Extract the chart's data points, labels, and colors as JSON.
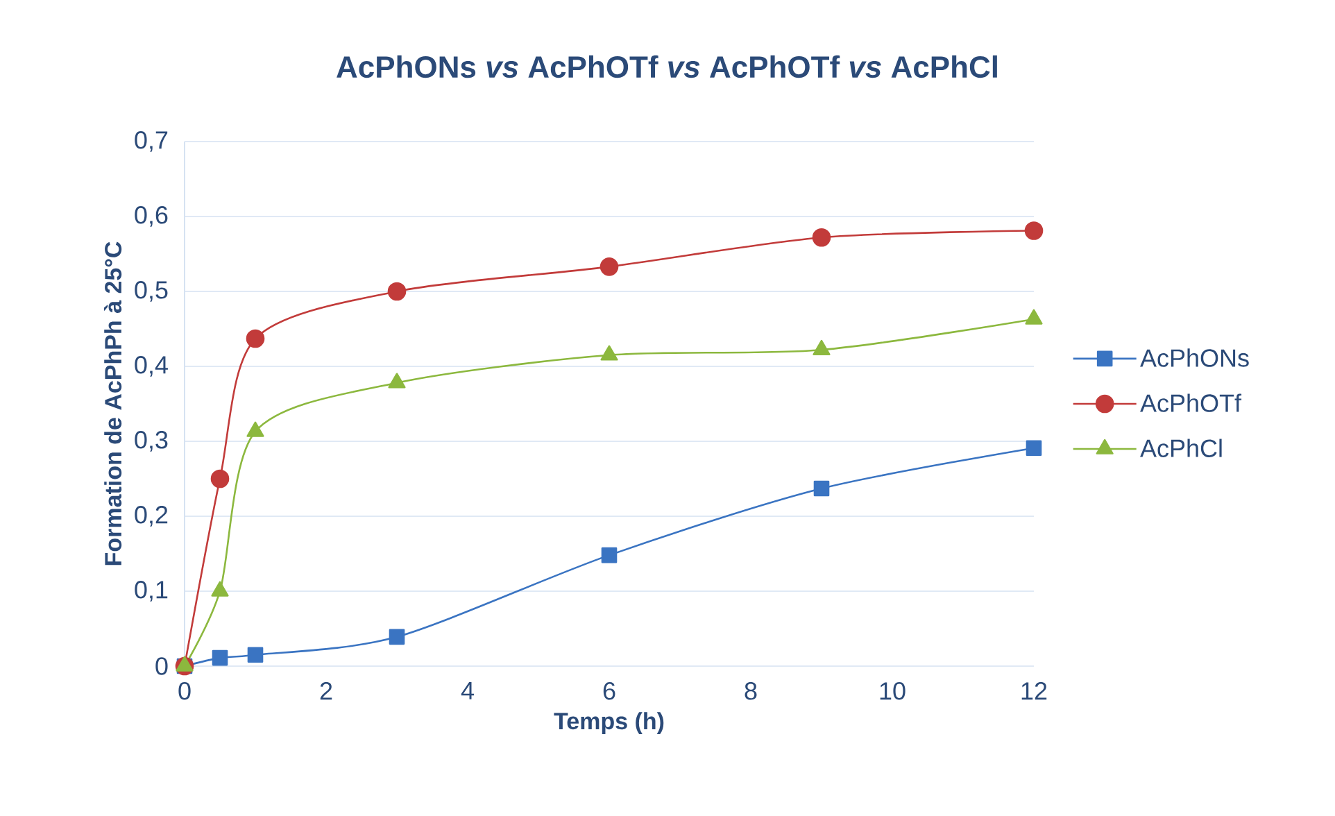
{
  "chart_data": {
    "type": "line",
    "title": "AcPhONs *vs* AcPhOTf *vs* AcPhOTf *vs* AcPhCl",
    "xlabel": "Temps (h)",
    "ylabel": "Formation de AcPhPh à 25°C",
    "x": [
      0,
      0.5,
      1,
      3,
      6,
      9,
      12
    ],
    "series": [
      {
        "name": "AcPhONs",
        "color": "#3a74c2",
        "marker": "square",
        "values": [
          0,
          0.011,
          0.015,
          0.039,
          0.148,
          0.237,
          0.291
        ]
      },
      {
        "name": "AcPhOTf",
        "color": "#c23b3a",
        "marker": "circle",
        "values": [
          0,
          0.25,
          0.437,
          0.5,
          0.533,
          0.572,
          0.581
        ]
      },
      {
        "name": "AcPhCl",
        "color": "#8cb83e",
        "marker": "triangle",
        "values": [
          0,
          0.1,
          0.313,
          0.378,
          0.415,
          0.422,
          0.463
        ]
      }
    ],
    "xlim": [
      0,
      12
    ],
    "xticks": [
      0,
      2,
      4,
      6,
      8,
      10,
      12
    ],
    "ylim": [
      0,
      0.7
    ],
    "yticks": [
      {
        "value": 0,
        "label": "0"
      },
      {
        "value": 0.1,
        "label": "0,1"
      },
      {
        "value": 0.2,
        "label": "0,2"
      },
      {
        "value": 0.3,
        "label": "0,3"
      },
      {
        "value": 0.4,
        "label": "0,4"
      },
      {
        "value": 0.5,
        "label": "0,5"
      },
      {
        "value": 0.6,
        "label": "0,6"
      },
      {
        "value": 0.7,
        "label": "0,7"
      }
    ],
    "grid": "y",
    "legend": "right",
    "line_style": "solid"
  }
}
